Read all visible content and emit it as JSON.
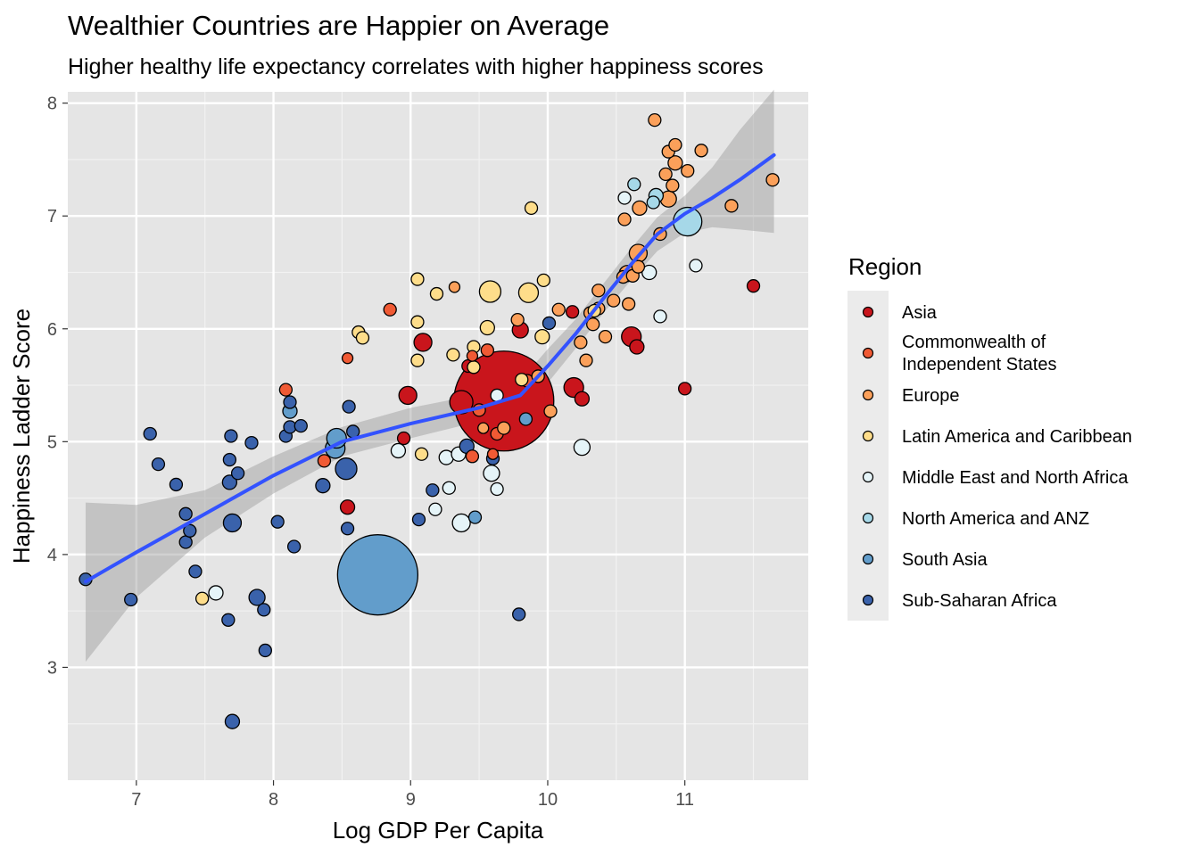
{
  "chart_data": {
    "type": "scatter",
    "title": "Wealthier Countries are Happier on Average",
    "subtitle": "Higher healthy life expectancy correlates with higher happiness scores",
    "xlabel": "Log GDP Per Capita",
    "ylabel": "Happiness Ladder Score",
    "xlim": [
      6.5,
      11.9
    ],
    "ylim": [
      2.0,
      8.1
    ],
    "xticks": [
      7,
      8,
      9,
      10,
      11
    ],
    "yticks": [
      3,
      4,
      5,
      6,
      7,
      8
    ],
    "x_tick_labels": [
      "7",
      "8",
      "9",
      "10",
      "11"
    ],
    "y_tick_labels": [
      "3",
      "4",
      "5",
      "6",
      "7",
      "8"
    ],
    "grid": true,
    "legend": {
      "title": "Region",
      "placement": "right",
      "entries": [
        {
          "label": "Asia",
          "color": "#C9151C"
        },
        {
          "label": "Commonwealth of\nIndependent States",
          "color": "#F05A34"
        },
        {
          "label": "Europe",
          "color": "#FBA05A"
        },
        {
          "label": "Latin America and Caribbean",
          "color": "#FEDD8A"
        },
        {
          "label": "Middle East and North Africa",
          "color": "#E5F4F8"
        },
        {
          "label": "North America and ANZ",
          "color": "#A6D8E8"
        },
        {
          "label": "South Asia",
          "color": "#629DCB"
        },
        {
          "label": "Sub-Saharan Africa",
          "color": "#3A62AB"
        }
      ]
    },
    "smooth_line": {
      "color": "#3352FF",
      "points": [
        [
          6.63,
          3.76
        ],
        [
          7.0,
          4.02
        ],
        [
          7.5,
          4.36
        ],
        [
          8.0,
          4.7
        ],
        [
          8.5,
          5.0
        ],
        [
          9.0,
          5.16
        ],
        [
          9.5,
          5.3
        ],
        [
          9.8,
          5.41
        ],
        [
          10.0,
          5.67
        ],
        [
          10.2,
          5.95
        ],
        [
          10.4,
          6.26
        ],
        [
          10.6,
          6.56
        ],
        [
          10.8,
          6.84
        ],
        [
          11.0,
          7.02
        ],
        [
          11.2,
          7.16
        ],
        [
          11.4,
          7.32
        ],
        [
          11.65,
          7.54
        ]
      ],
      "band_upper": [
        [
          6.63,
          4.46
        ],
        [
          7.0,
          4.44
        ],
        [
          7.5,
          4.57
        ],
        [
          8.0,
          4.87
        ],
        [
          8.5,
          5.13
        ],
        [
          9.0,
          5.3
        ],
        [
          9.5,
          5.42
        ],
        [
          9.8,
          5.54
        ],
        [
          10.0,
          5.82
        ],
        [
          10.2,
          6.08
        ],
        [
          10.4,
          6.39
        ],
        [
          10.6,
          6.7
        ],
        [
          10.8,
          6.99
        ],
        [
          11.0,
          7.18
        ],
        [
          11.2,
          7.43
        ],
        [
          11.4,
          7.76
        ],
        [
          11.65,
          8.12
        ]
      ],
      "band_lower": [
        [
          6.63,
          3.05
        ],
        [
          7.0,
          3.62
        ],
        [
          7.5,
          4.15
        ],
        [
          8.0,
          4.54
        ],
        [
          8.5,
          4.87
        ],
        [
          9.0,
          5.03
        ],
        [
          9.5,
          5.18
        ],
        [
          9.8,
          5.29
        ],
        [
          10.0,
          5.52
        ],
        [
          10.2,
          5.82
        ],
        [
          10.4,
          6.13
        ],
        [
          10.6,
          6.42
        ],
        [
          10.8,
          6.69
        ],
        [
          11.0,
          6.85
        ],
        [
          11.2,
          6.9
        ],
        [
          11.4,
          6.88
        ],
        [
          11.65,
          6.85
        ]
      ]
    },
    "points": [
      {
        "x": 9.68,
        "y": 5.36,
        "r": 56,
        "region": "Asia"
      },
      {
        "x": 8.76,
        "y": 3.82,
        "r": 45,
        "region": "South Asia"
      },
      {
        "x": 9.37,
        "y": 5.35,
        "r": 13,
        "region": "Asia"
      },
      {
        "x": 9.09,
        "y": 5.88,
        "r": 10,
        "region": "Asia"
      },
      {
        "x": 8.98,
        "y": 5.41,
        "r": 10,
        "region": "Asia"
      },
      {
        "x": 8.54,
        "y": 4.42,
        "r": 8,
        "region": "Asia"
      },
      {
        "x": 8.95,
        "y": 5.03,
        "r": 7,
        "region": "Asia"
      },
      {
        "x": 9.42,
        "y": 5.67,
        "r": 7,
        "region": "Asia"
      },
      {
        "x": 9.8,
        "y": 5.99,
        "r": 9,
        "region": "Asia"
      },
      {
        "x": 10.19,
        "y": 5.48,
        "r": 11,
        "region": "Asia"
      },
      {
        "x": 10.25,
        "y": 5.38,
        "r": 8,
        "region": "Asia"
      },
      {
        "x": 10.61,
        "y": 5.93,
        "r": 11,
        "region": "Asia"
      },
      {
        "x": 10.65,
        "y": 5.84,
        "r": 8,
        "region": "Asia"
      },
      {
        "x": 11.0,
        "y": 5.47,
        "r": 7,
        "region": "Asia"
      },
      {
        "x": 11.5,
        "y": 6.38,
        "r": 7,
        "region": "Asia"
      },
      {
        "x": 10.18,
        "y": 6.15,
        "r": 7,
        "region": "Asia"
      },
      {
        "x": 8.37,
        "y": 4.83,
        "r": 7,
        "region": "Commonwealth of\nIndependent States"
      },
      {
        "x": 8.09,
        "y": 5.46,
        "r": 7,
        "region": "Commonwealth of\nIndependent States"
      },
      {
        "x": 8.54,
        "y": 5.74,
        "r": 6,
        "region": "Commonwealth of\nIndependent States"
      },
      {
        "x": 8.85,
        "y": 6.17,
        "r": 7,
        "region": "Commonwealth of\nIndependent States"
      },
      {
        "x": 9.45,
        "y": 5.76,
        "r": 6,
        "region": "Commonwealth of\nIndependent States"
      },
      {
        "x": 9.45,
        "y": 4.87,
        "r": 7,
        "region": "Commonwealth of\nIndependent States"
      },
      {
        "x": 9.5,
        "y": 5.28,
        "r": 7,
        "region": "Commonwealth of\nIndependent States"
      },
      {
        "x": 9.56,
        "y": 5.81,
        "r": 7,
        "region": "Commonwealth of\nIndependent States"
      },
      {
        "x": 9.6,
        "y": 4.89,
        "r": 6,
        "region": "Commonwealth of\nIndependent States"
      },
      {
        "x": 9.63,
        "y": 5.07,
        "r": 7,
        "region": "Commonwealth of\nIndependent States"
      },
      {
        "x": 9.85,
        "y": 5.54,
        "r": 7,
        "region": "Commonwealth of\nIndependent States"
      },
      {
        "x": 9.32,
        "y": 6.37,
        "r": 6,
        "region": "Europe"
      },
      {
        "x": 9.53,
        "y": 5.12,
        "r": 6,
        "region": "Europe"
      },
      {
        "x": 9.68,
        "y": 5.12,
        "r": 7,
        "region": "Europe"
      },
      {
        "x": 9.78,
        "y": 6.08,
        "r": 7,
        "region": "Europe"
      },
      {
        "x": 9.93,
        "y": 5.58,
        "r": 7,
        "region": "Europe"
      },
      {
        "x": 10.02,
        "y": 5.27,
        "r": 7,
        "region": "Europe"
      },
      {
        "x": 10.08,
        "y": 6.17,
        "r": 7,
        "region": "Europe"
      },
      {
        "x": 10.24,
        "y": 5.88,
        "r": 7,
        "region": "Europe"
      },
      {
        "x": 10.28,
        "y": 5.72,
        "r": 7,
        "region": "Europe"
      },
      {
        "x": 10.31,
        "y": 6.14,
        "r": 7,
        "region": "Europe"
      },
      {
        "x": 10.33,
        "y": 6.04,
        "r": 7,
        "region": "Europe"
      },
      {
        "x": 10.37,
        "y": 6.34,
        "r": 7,
        "region": "Europe"
      },
      {
        "x": 10.37,
        "y": 6.18,
        "r": 7,
        "region": "Europe"
      },
      {
        "x": 10.42,
        "y": 5.93,
        "r": 7,
        "region": "Europe"
      },
      {
        "x": 10.48,
        "y": 6.25,
        "r": 7,
        "region": "Europe"
      },
      {
        "x": 10.55,
        "y": 6.46,
        "r": 7,
        "region": "Europe"
      },
      {
        "x": 10.56,
        "y": 6.97,
        "r": 7,
        "region": "Europe"
      },
      {
        "x": 10.59,
        "y": 6.22,
        "r": 7,
        "region": "Europe"
      },
      {
        "x": 10.62,
        "y": 6.47,
        "r": 7,
        "region": "Europe"
      },
      {
        "x": 10.66,
        "y": 6.55,
        "r": 7,
        "region": "Europe"
      },
      {
        "x": 10.66,
        "y": 6.67,
        "r": 10,
        "region": "Europe"
      },
      {
        "x": 10.67,
        "y": 7.07,
        "r": 8,
        "region": "Europe"
      },
      {
        "x": 10.78,
        "y": 7.85,
        "r": 7,
        "region": "Europe"
      },
      {
        "x": 10.82,
        "y": 6.84,
        "r": 7,
        "region": "Europe"
      },
      {
        "x": 10.86,
        "y": 7.37,
        "r": 7,
        "region": "Europe"
      },
      {
        "x": 10.88,
        "y": 7.57,
        "r": 7,
        "region": "Europe"
      },
      {
        "x": 10.88,
        "y": 7.15,
        "r": 9,
        "region": "Europe"
      },
      {
        "x": 10.91,
        "y": 7.27,
        "r": 7,
        "region": "Europe"
      },
      {
        "x": 10.93,
        "y": 7.47,
        "r": 8,
        "region": "Europe"
      },
      {
        "x": 10.93,
        "y": 7.63,
        "r": 7,
        "region": "Europe"
      },
      {
        "x": 11.02,
        "y": 7.4,
        "r": 7,
        "region": "Europe"
      },
      {
        "x": 11.12,
        "y": 7.58,
        "r": 7,
        "region": "Europe"
      },
      {
        "x": 11.34,
        "y": 7.09,
        "r": 7,
        "region": "Europe"
      },
      {
        "x": 11.64,
        "y": 7.32,
        "r": 7,
        "region": "Europe"
      },
      {
        "x": 10.58,
        "y": 6.49,
        "r": 9,
        "region": "Europe"
      },
      {
        "x": 7.48,
        "y": 3.61,
        "r": 7,
        "region": "Latin America and Caribbean"
      },
      {
        "x": 8.62,
        "y": 5.97,
        "r": 7,
        "region": "Latin America and Caribbean"
      },
      {
        "x": 8.65,
        "y": 5.92,
        "r": 7,
        "region": "Latin America and Caribbean"
      },
      {
        "x": 9.05,
        "y": 6.44,
        "r": 7,
        "region": "Latin America and Caribbean"
      },
      {
        "x": 9.05,
        "y": 6.06,
        "r": 7,
        "region": "Latin America and Caribbean"
      },
      {
        "x": 9.05,
        "y": 5.72,
        "r": 7,
        "region": "Latin America and Caribbean"
      },
      {
        "x": 9.08,
        "y": 4.89,
        "r": 7,
        "region": "Latin America and Caribbean"
      },
      {
        "x": 9.19,
        "y": 6.31,
        "r": 7,
        "region": "Latin America and Caribbean"
      },
      {
        "x": 9.31,
        "y": 5.77,
        "r": 7,
        "region": "Latin America and Caribbean"
      },
      {
        "x": 9.46,
        "y": 5.84,
        "r": 7,
        "region": "Latin America and Caribbean"
      },
      {
        "x": 9.46,
        "y": 5.66,
        "r": 7,
        "region": "Latin America and Caribbean"
      },
      {
        "x": 9.56,
        "y": 6.01,
        "r": 8,
        "region": "Latin America and Caribbean"
      },
      {
        "x": 9.58,
        "y": 6.33,
        "r": 12,
        "region": "Latin America and Caribbean"
      },
      {
        "x": 9.86,
        "y": 6.32,
        "r": 11,
        "region": "Latin America and Caribbean"
      },
      {
        "x": 9.88,
        "y": 7.07,
        "r": 7,
        "region": "Latin America and Caribbean"
      },
      {
        "x": 9.96,
        "y": 5.93,
        "r": 8,
        "region": "Latin America and Caribbean"
      },
      {
        "x": 9.97,
        "y": 6.43,
        "r": 7,
        "region": "Latin America and Caribbean"
      },
      {
        "x": 10.34,
        "y": 6.16,
        "r": 7,
        "region": "Latin America and Caribbean"
      },
      {
        "x": 9.81,
        "y": 5.55,
        "r": 7,
        "region": "Latin America and Caribbean"
      },
      {
        "x": 7.58,
        "y": 3.66,
        "r": 8,
        "region": "Middle East and North Africa"
      },
      {
        "x": 8.91,
        "y": 4.92,
        "r": 8,
        "region": "Middle East and North Africa"
      },
      {
        "x": 9.18,
        "y": 4.4,
        "r": 7,
        "region": "Middle East and North Africa"
      },
      {
        "x": 9.26,
        "y": 4.86,
        "r": 8,
        "region": "Middle East and North Africa"
      },
      {
        "x": 9.28,
        "y": 4.59,
        "r": 7,
        "region": "Middle East and North Africa"
      },
      {
        "x": 9.35,
        "y": 4.89,
        "r": 8,
        "region": "Middle East and North Africa"
      },
      {
        "x": 9.37,
        "y": 4.28,
        "r": 10,
        "region": "Middle East and North Africa"
      },
      {
        "x": 9.59,
        "y": 4.72,
        "r": 9,
        "region": "Middle East and North Africa"
      },
      {
        "x": 9.63,
        "y": 4.58,
        "r": 7,
        "region": "Middle East and North Africa"
      },
      {
        "x": 9.63,
        "y": 5.41,
        "r": 7,
        "region": "Middle East and North Africa"
      },
      {
        "x": 10.25,
        "y": 4.95,
        "r": 9,
        "region": "Middle East and North Africa"
      },
      {
        "x": 10.56,
        "y": 7.16,
        "r": 7,
        "region": "Middle East and North Africa"
      },
      {
        "x": 10.74,
        "y": 6.5,
        "r": 8,
        "region": "Middle East and North Africa"
      },
      {
        "x": 10.82,
        "y": 6.11,
        "r": 7,
        "region": "Middle East and North Africa"
      },
      {
        "x": 11.08,
        "y": 6.56,
        "r": 7,
        "region": "Middle East and North Africa"
      },
      {
        "x": 10.63,
        "y": 7.28,
        "r": 7,
        "region": "North America and ANZ"
      },
      {
        "x": 10.77,
        "y": 7.12,
        "r": 7,
        "region": "North America and ANZ"
      },
      {
        "x": 10.79,
        "y": 7.18,
        "r": 8,
        "region": "North America and ANZ"
      },
      {
        "x": 11.02,
        "y": 6.95,
        "r": 16,
        "region": "North America and ANZ"
      },
      {
        "x": 8.12,
        "y": 5.27,
        "r": 8,
        "region": "South Asia"
      },
      {
        "x": 8.45,
        "y": 4.94,
        "r": 11,
        "region": "South Asia"
      },
      {
        "x": 8.46,
        "y": 5.03,
        "r": 11,
        "region": "South Asia"
      },
      {
        "x": 9.47,
        "y": 4.33,
        "r": 7,
        "region": "South Asia"
      },
      {
        "x": 9.84,
        "y": 5.2,
        "r": 7,
        "region": "South Asia"
      },
      {
        "x": 6.63,
        "y": 3.78,
        "r": 7,
        "region": "Sub-Saharan Africa"
      },
      {
        "x": 6.96,
        "y": 3.6,
        "r": 7,
        "region": "Sub-Saharan Africa"
      },
      {
        "x": 7.1,
        "y": 5.07,
        "r": 7,
        "region": "Sub-Saharan Africa"
      },
      {
        "x": 7.16,
        "y": 4.8,
        "r": 7,
        "region": "Sub-Saharan Africa"
      },
      {
        "x": 7.29,
        "y": 4.62,
        "r": 7,
        "region": "Sub-Saharan Africa"
      },
      {
        "x": 7.36,
        "y": 4.36,
        "r": 7,
        "region": "Sub-Saharan Africa"
      },
      {
        "x": 7.36,
        "y": 4.11,
        "r": 7,
        "region": "Sub-Saharan Africa"
      },
      {
        "x": 7.39,
        "y": 4.21,
        "r": 7,
        "region": "Sub-Saharan Africa"
      },
      {
        "x": 7.43,
        "y": 3.85,
        "r": 7,
        "region": "Sub-Saharan Africa"
      },
      {
        "x": 7.67,
        "y": 3.42,
        "r": 7,
        "region": "Sub-Saharan Africa"
      },
      {
        "x": 7.68,
        "y": 4.64,
        "r": 8,
        "region": "Sub-Saharan Africa"
      },
      {
        "x": 7.68,
        "y": 4.84,
        "r": 7,
        "region": "Sub-Saharan Africa"
      },
      {
        "x": 7.69,
        "y": 5.05,
        "r": 7,
        "region": "Sub-Saharan Africa"
      },
      {
        "x": 7.7,
        "y": 2.52,
        "r": 8,
        "region": "Sub-Saharan Africa"
      },
      {
        "x": 7.7,
        "y": 4.28,
        "r": 10,
        "region": "Sub-Saharan Africa"
      },
      {
        "x": 7.74,
        "y": 4.72,
        "r": 7,
        "region": "Sub-Saharan Africa"
      },
      {
        "x": 7.84,
        "y": 4.99,
        "r": 7,
        "region": "Sub-Saharan Africa"
      },
      {
        "x": 7.88,
        "y": 3.62,
        "r": 9,
        "region": "Sub-Saharan Africa"
      },
      {
        "x": 7.93,
        "y": 3.51,
        "r": 7,
        "region": "Sub-Saharan Africa"
      },
      {
        "x": 7.94,
        "y": 3.15,
        "r": 7,
        "region": "Sub-Saharan Africa"
      },
      {
        "x": 8.03,
        "y": 4.29,
        "r": 7,
        "region": "Sub-Saharan Africa"
      },
      {
        "x": 8.09,
        "y": 5.05,
        "r": 7,
        "region": "Sub-Saharan Africa"
      },
      {
        "x": 8.12,
        "y": 5.13,
        "r": 7,
        "region": "Sub-Saharan Africa"
      },
      {
        "x": 8.12,
        "y": 5.35,
        "r": 7,
        "region": "Sub-Saharan Africa"
      },
      {
        "x": 8.15,
        "y": 4.07,
        "r": 7,
        "region": "Sub-Saharan Africa"
      },
      {
        "x": 8.2,
        "y": 5.14,
        "r": 7,
        "region": "Sub-Saharan Africa"
      },
      {
        "x": 8.36,
        "y": 4.61,
        "r": 8,
        "region": "Sub-Saharan Africa"
      },
      {
        "x": 8.53,
        "y": 4.76,
        "r": 12,
        "region": "Sub-Saharan Africa"
      },
      {
        "x": 8.54,
        "y": 4.23,
        "r": 7,
        "region": "Sub-Saharan Africa"
      },
      {
        "x": 8.55,
        "y": 5.31,
        "r": 7,
        "region": "Sub-Saharan Africa"
      },
      {
        "x": 8.58,
        "y": 5.09,
        "r": 7,
        "region": "Sub-Saharan Africa"
      },
      {
        "x": 9.06,
        "y": 4.31,
        "r": 7,
        "region": "Sub-Saharan Africa"
      },
      {
        "x": 9.16,
        "y": 4.57,
        "r": 7,
        "region": "Sub-Saharan Africa"
      },
      {
        "x": 9.41,
        "y": 4.96,
        "r": 8,
        "region": "Sub-Saharan Africa"
      },
      {
        "x": 9.6,
        "y": 4.85,
        "r": 7,
        "region": "Sub-Saharan Africa"
      },
      {
        "x": 9.79,
        "y": 3.47,
        "r": 7,
        "region": "Sub-Saharan Africa"
      },
      {
        "x": 10.01,
        "y": 6.05,
        "r": 7,
        "region": "Sub-Saharan Africa"
      }
    ]
  }
}
